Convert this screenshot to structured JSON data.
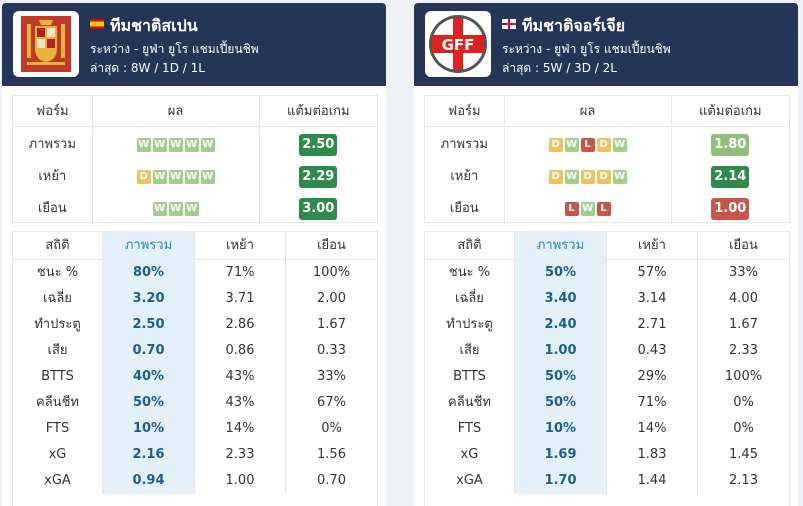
{
  "accent_colors": {
    "header_bg": "#243557",
    "win": "#9fd08b",
    "draw": "#efc15f",
    "loss": "#c9544a",
    "highlight_col": "#e4f1fb"
  },
  "left": {
    "team_name": "ทีมชาติสเปน",
    "flag_icon": "spain-flag-icon",
    "logo_icon": "spain-crest-logo",
    "comp_line": "ระหว่าง - ยูฟ่า ยูโร แชมเปี้ยนชิพ",
    "record_line": "ล่าสุด : 8W / 1D / 1L",
    "form_header": {
      "label": "ฟอร์ม",
      "results": "ผล",
      "ppg": "แต้มต่อเกม"
    },
    "form_rows": [
      {
        "label": "ภาพรวม",
        "badges": [
          "W",
          "W",
          "W",
          "W",
          "W"
        ],
        "ppg": "2.50",
        "ppg_color": "#2e8b4a"
      },
      {
        "label": "เหย้า",
        "badges": [
          "D",
          "W",
          "W",
          "W",
          "W"
        ],
        "ppg": "2.29",
        "ppg_color": "#2e8b4a"
      },
      {
        "label": "เยือน",
        "badges": [
          "W",
          "W",
          "W"
        ],
        "ppg": "3.00",
        "ppg_color": "#2e8b4a"
      }
    ],
    "stats_header": {
      "stat": "สถิติ",
      "overall": "ภาพรวม",
      "home": "เหย้า",
      "away": "เยือน"
    },
    "stats_rows": [
      {
        "label": "ชนะ %",
        "overall": "80%",
        "home": "71%",
        "away": "100%"
      },
      {
        "label": "เฉลี่ย",
        "overall": "3.20",
        "home": "3.71",
        "away": "2.00"
      },
      {
        "label": "ทำประตู",
        "overall": "2.50",
        "home": "2.86",
        "away": "1.67"
      },
      {
        "label": "เสีย",
        "overall": "0.70",
        "home": "0.86",
        "away": "0.33"
      },
      {
        "label": "BTTS",
        "overall": "40%",
        "home": "43%",
        "away": "33%"
      },
      {
        "label": "คลีนชีท",
        "overall": "50%",
        "home": "43%",
        "away": "67%"
      },
      {
        "label": "FTS",
        "overall": "10%",
        "home": "14%",
        "away": "0%"
      },
      {
        "label": "xG",
        "overall": "2.16",
        "home": "2.33",
        "away": "1.56"
      },
      {
        "label": "xGA",
        "overall": "0.94",
        "home": "1.00",
        "away": "0.70"
      }
    ]
  },
  "right": {
    "team_name": "ทีมชาติจอร์เจีย",
    "flag_icon": "england-flag-icon",
    "logo_icon": "gff-logo",
    "logo_text": "GFF",
    "comp_line": "ระหว่าง - ยูฟ่า ยูโร แชมเปี้ยนชิพ",
    "record_line": "ล่าสุด : 5W / 3D / 2L",
    "form_header": {
      "label": "ฟอร์ม",
      "results": "ผล",
      "ppg": "แต้มต่อเกม"
    },
    "form_rows": [
      {
        "label": "ภาพรวม",
        "badges": [
          "D",
          "W",
          "L",
          "D",
          "W"
        ],
        "ppg": "1.80",
        "ppg_color": "#8fc079"
      },
      {
        "label": "เหย้า",
        "badges": [
          "D",
          "W",
          "D",
          "D",
          "W"
        ],
        "ppg": "2.14",
        "ppg_color": "#2e8b4a"
      },
      {
        "label": "เยือน",
        "badges": [
          "L",
          "W",
          "L"
        ],
        "ppg": "1.00",
        "ppg_color": "#c9544a"
      }
    ],
    "stats_header": {
      "stat": "สถิติ",
      "overall": "ภาพรวม",
      "home": "เหย้า",
      "away": "เยือน"
    },
    "stats_rows": [
      {
        "label": "ชนะ %",
        "overall": "50%",
        "home": "57%",
        "away": "33%"
      },
      {
        "label": "เฉลี่ย",
        "overall": "3.40",
        "home": "3.14",
        "away": "4.00"
      },
      {
        "label": "ทำประตู",
        "overall": "2.40",
        "home": "2.71",
        "away": "1.67"
      },
      {
        "label": "เสีย",
        "overall": "1.00",
        "home": "0.43",
        "away": "2.33"
      },
      {
        "label": "BTTS",
        "overall": "50%",
        "home": "29%",
        "away": "100%"
      },
      {
        "label": "คลีนชีท",
        "overall": "50%",
        "home": "71%",
        "away": "0%"
      },
      {
        "label": "FTS",
        "overall": "10%",
        "home": "14%",
        "away": "0%"
      },
      {
        "label": "xG",
        "overall": "1.69",
        "home": "1.83",
        "away": "1.45"
      },
      {
        "label": "xGA",
        "overall": "1.70",
        "home": "1.44",
        "away": "2.13"
      }
    ]
  }
}
